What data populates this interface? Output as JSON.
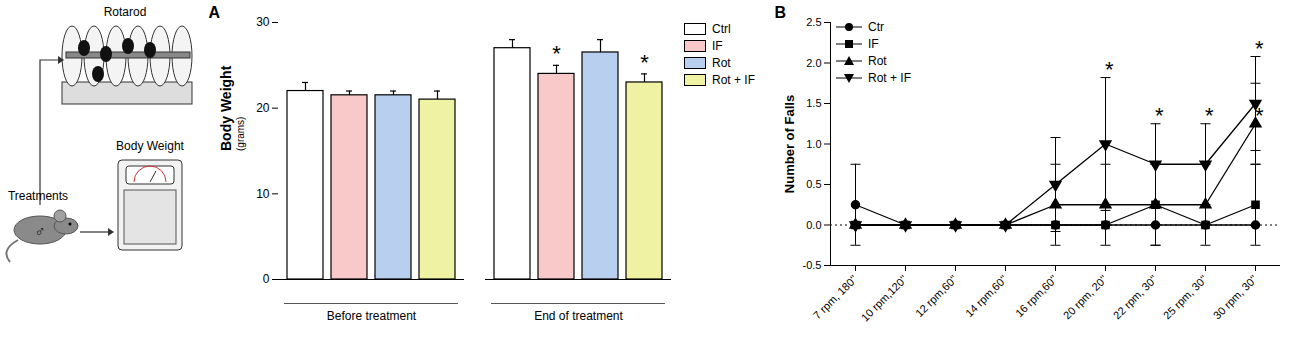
{
  "diagram": {
    "labels": {
      "rotarod": "Rotarod",
      "treatments": "Treatments",
      "body_weight": "Body Weight",
      "sex": "♂"
    }
  },
  "chart_data": [
    {
      "type": "bar",
      "title": "A",
      "y_label": [
        "Body Weight",
        "(grams)"
      ],
      "categories": [
        "Before treatment",
        "End of treatment"
      ],
      "series": [
        {
          "name": "Ctrl",
          "color": "#ffffff",
          "values": [
            22,
            27
          ],
          "errors": [
            1,
            1
          ]
        },
        {
          "name": "IF",
          "color": "#f9c8c8",
          "values": [
            21.5,
            24
          ],
          "errors": [
            0.5,
            1
          ]
        },
        {
          "name": "Rot",
          "color": "#b8cff0",
          "values": [
            21.5,
            26.5
          ],
          "errors": [
            0.5,
            1.5
          ]
        },
        {
          "name": "Rot + IF",
          "color": "#eef2a2",
          "values": [
            21,
            23
          ],
          "errors": [
            1,
            1
          ]
        }
      ],
      "ylim": [
        0,
        30
      ],
      "yticks": [
        0,
        10,
        20,
        30
      ],
      "legend": "right",
      "annotations": [
        {
          "category": "End of treatment",
          "series": "IF",
          "text": "*"
        },
        {
          "category": "End of treatment",
          "series": "Rot + IF",
          "text": "*"
        }
      ]
    },
    {
      "type": "line",
      "title": "B",
      "y_label": "Number of Falls",
      "categories": [
        "7 rpm, 180''",
        "10 rpm,120''",
        "12 rpm,60''",
        "14 rpm,60''",
        "16 rpm,60''",
        "20 rpm, 20''",
        "22 rpm, 30''",
        "25 rpm, 30''",
        "30 rpm, 30''"
      ],
      "series": [
        {
          "name": "Ctr",
          "color": "#000000",
          "marker": "circle",
          "values": [
            0.25,
            0,
            0,
            0,
            0,
            0,
            0,
            0,
            0
          ],
          "errors": [
            0.5,
            0,
            0,
            0,
            0,
            0,
            0,
            0,
            0
          ]
        },
        {
          "name": "IF",
          "color": "#000000",
          "marker": "square",
          "values": [
            0,
            0,
            0,
            0,
            0,
            0,
            0.25,
            0,
            0.25
          ],
          "errors": [
            0,
            0,
            0,
            0,
            0,
            0,
            0.5,
            0,
            0.5
          ]
        },
        {
          "name": "Rot",
          "color": "#000000",
          "marker": "triangle",
          "values": [
            0,
            0,
            0,
            0,
            0.25,
            0.25,
            0.25,
            0.25,
            1.25
          ],
          "errors": [
            0,
            0,
            0,
            0,
            0.5,
            0.5,
            0.5,
            0.5,
            0.5
          ]
        },
        {
          "name": "Rot + IF",
          "color": "#000000",
          "marker": "triangle-down",
          "values": [
            0,
            0,
            0,
            0,
            0.5,
            1,
            0.75,
            0.75,
            1.5
          ],
          "errors": [
            0,
            0,
            0,
            0,
            0.58,
            0.82,
            0.5,
            0.5,
            0.58
          ]
        }
      ],
      "ylim": [
        -0.5,
        2.5
      ],
      "yticks": [
        -0.5,
        {
          "value": 0,
          "label": "0.0"
        },
        0.5,
        {
          "value": 1,
          "label": "1.0"
        },
        1.5,
        {
          "value": 2,
          "label": "2.0"
        },
        2.5
      ],
      "reference_line": 0,
      "legend": "top-left",
      "annotations": [
        {
          "category": "20 rpm, 20''",
          "series": "Rot + IF",
          "text": "*"
        },
        {
          "category": "22 rpm, 30''",
          "series": "Rot + IF",
          "text": "*"
        },
        {
          "category": "25 rpm, 30''",
          "series": "Rot + IF",
          "text": "*"
        },
        {
          "category": "30 rpm, 30''",
          "series": "Rot + IF",
          "text": "*"
        },
        {
          "category": "30 rpm, 30''",
          "series": "Rot",
          "text": "*"
        }
      ]
    }
  ]
}
